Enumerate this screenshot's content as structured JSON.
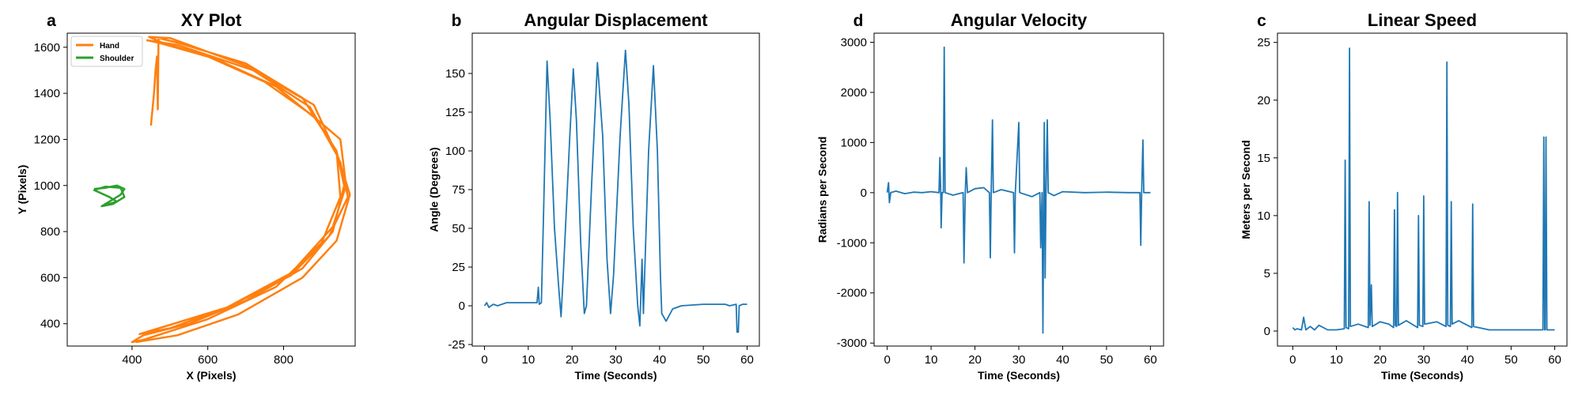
{
  "chart_data": [
    {
      "type": "line",
      "panel_label": "a",
      "title": "XY Plot",
      "xlabel": "X (Pixels)",
      "ylabel": "Y (Pixels)",
      "xlim": [
        229,
        989
      ],
      "ylim": [
        303,
        1661
      ],
      "xticks": [
        400,
        600,
        800
      ],
      "yticks": [
        400,
        600,
        800,
        1000,
        1200,
        1400,
        1600
      ],
      "legend": "upper left",
      "series": [
        {
          "name": "Hand",
          "color": "#ff7f0e",
          "x": [
            450,
            458,
            462,
            466,
            468,
            470,
            520,
            700,
            850,
            940,
            960,
            930,
            850,
            700,
            550,
            430,
            400,
            430,
            600,
            780,
            900,
            950,
            940,
            880,
            750,
            600,
            480,
            445,
            500,
            700,
            880,
            950,
            970,
            920,
            820,
            650,
            500,
            420,
            450,
            650,
            820,
            930,
            965,
            950,
            900,
            780,
            620,
            470,
            440,
            520,
            720,
            870,
            945,
            975,
            940,
            850,
            680,
            520,
            410
          ],
          "values": [
            1260,
            1400,
            1500,
            1560,
            1330,
            1640,
            1620,
            1530,
            1380,
            1150,
            1000,
            800,
            640,
            500,
            400,
            350,
            320,
            330,
            420,
            560,
            750,
            950,
            1150,
            1300,
            1450,
            1560,
            1620,
            1645,
            1640,
            1520,
            1350,
            1100,
            950,
            780,
            610,
            470,
            380,
            355,
            370,
            470,
            620,
            820,
            1000,
            1200,
            1270,
            1430,
            1550,
            1620,
            1630,
            1610,
            1500,
            1340,
            1120,
            960,
            760,
            600,
            440,
            350,
            320
          ]
        },
        {
          "name": "Shoulder",
          "color": "#2ca02c",
          "x": [
            300,
            330,
            360,
            380,
            370,
            340,
            320,
            350,
            380,
            370,
            330,
            300,
            340,
            360,
            330
          ],
          "values": [
            985,
            990,
            1000,
            985,
            960,
            930,
            910,
            920,
            950,
            990,
            995,
            980,
            950,
            930,
            915
          ]
        }
      ]
    },
    {
      "type": "line",
      "panel_label": "b",
      "title": "Angular Displacement",
      "xlabel": "Time (Seconds)",
      "ylabel": "Angle (Degrees)",
      "xlim": [
        -2.8,
        62.8
      ],
      "ylim": [
        -26,
        176
      ],
      "xticks": [
        0,
        10,
        20,
        30,
        40,
        50,
        60
      ],
      "yticks": [
        -25,
        0,
        25,
        50,
        75,
        100,
        125,
        150
      ],
      "series": [
        {
          "color": "#1f77b4",
          "x": [
            0,
            0.5,
            1,
            2,
            3,
            5,
            8,
            10,
            12,
            12.3,
            12.5,
            13,
            13.5,
            14.3,
            15,
            16,
            17,
            17.5,
            18,
            19.5,
            20.3,
            21,
            22,
            22.8,
            23.3,
            24.5,
            25.8,
            27,
            28,
            28.8,
            29.5,
            31,
            32.2,
            33,
            34,
            35,
            35.5,
            36,
            36.3,
            37.5,
            38.6,
            39.5,
            40.2,
            40.5,
            41.5,
            43,
            45,
            50,
            55,
            56,
            57.5,
            57.7,
            58,
            58.2,
            59,
            60
          ],
          "values": [
            0,
            2,
            -1,
            1,
            0,
            2,
            2,
            2,
            2,
            12,
            1,
            2,
            60,
            158,
            120,
            50,
            10,
            -7,
            20,
            110,
            153,
            120,
            40,
            -5,
            0,
            80,
            157,
            110,
            30,
            -5,
            20,
            110,
            165,
            130,
            50,
            0,
            -13,
            30,
            -5,
            100,
            155,
            100,
            20,
            -5,
            -10,
            -2,
            0,
            1,
            1,
            0,
            1,
            -17,
            -17,
            0,
            1,
            1
          ]
        }
      ]
    },
    {
      "type": "line",
      "panel_label": "d",
      "title": "Angular Velocity",
      "xlabel": "Time (Seconds)",
      "ylabel": "Radians per Second",
      "xlim": [
        -3,
        63
      ],
      "ylim": [
        -3060,
        3181
      ],
      "xticks": [
        0,
        10,
        20,
        30,
        40,
        50,
        60
      ],
      "yticks": [
        -3000,
        -2000,
        -1000,
        0,
        1000,
        2000,
        3000
      ],
      "series": [
        {
          "color": "#1f77b4",
          "x": [
            0,
            0.3,
            0.5,
            0.8,
            2,
            4,
            6,
            8,
            10,
            11.8,
            12,
            12.2,
            12.3,
            12.5,
            12.8,
            13,
            13.2,
            15,
            17.3,
            17.5,
            17.8,
            18,
            18.3,
            20,
            22,
            23.3,
            23.5,
            23.7,
            24,
            24.2,
            26,
            28.8,
            29,
            29.2,
            30,
            30.2,
            33,
            34.8,
            35,
            35.3,
            35.5,
            35.7,
            35.8,
            36,
            36.2,
            36.5,
            36.7,
            38,
            40,
            45,
            50,
            55,
            57.6,
            57.8,
            58,
            58.3,
            58.5,
            60
          ],
          "values": [
            0,
            200,
            -200,
            0,
            30,
            -20,
            10,
            0,
            20,
            0,
            700,
            0,
            -700,
            0,
            0,
            2900,
            0,
            -50,
            0,
            -1400,
            0,
            500,
            0,
            80,
            100,
            0,
            -1300,
            0,
            1450,
            0,
            60,
            0,
            -1200,
            0,
            1400,
            0,
            -80,
            0,
            -1100,
            0,
            -2800,
            0,
            1400,
            -1700,
            0,
            1450,
            0,
            -60,
            20,
            0,
            10,
            0,
            0,
            -1050,
            0,
            1050,
            0,
            0
          ]
        }
      ]
    },
    {
      "type": "line",
      "panel_label": "c",
      "title": "Linear Speed",
      "xlabel": "Time (Seconds)",
      "ylabel": "Meters per Second",
      "xlim": [
        -3.5,
        62.8
      ],
      "ylim": [
        -1.3,
        25.8
      ],
      "xticks": [
        0,
        10,
        20,
        30,
        40,
        50,
        60
      ],
      "yticks": [
        0,
        5,
        10,
        15,
        20,
        25
      ],
      "series": [
        {
          "color": "#1f77b4",
          "x": [
            0,
            0.5,
            1,
            2,
            2.5,
            3,
            4,
            5,
            6,
            8,
            10,
            11.8,
            12,
            12.2,
            12.8,
            13,
            13.2,
            15,
            17.3,
            17.5,
            17.7,
            18,
            18.2,
            20,
            22,
            23.1,
            23.3,
            23.5,
            23.8,
            24,
            24.2,
            26,
            28.6,
            28.8,
            29,
            29.8,
            30,
            30.2,
            33,
            35.1,
            35.3,
            35.5,
            36.1,
            36.3,
            36.5,
            38,
            41,
            41.2,
            41.4,
            45,
            50,
            55,
            57.3,
            57.5,
            57.7,
            57.8,
            58,
            58.2,
            60
          ],
          "values": [
            0.3,
            0.1,
            0.2,
            0.1,
            1.2,
            0.1,
            0.4,
            0.1,
            0.5,
            0.1,
            0.1,
            0.2,
            14.8,
            0.3,
            0.2,
            24.5,
            0.4,
            0.6,
            0.3,
            11.2,
            0.5,
            4,
            0.4,
            0.8,
            0.6,
            0.3,
            10.5,
            0.5,
            0.4,
            12,
            0.5,
            0.9,
            0.3,
            10,
            0.5,
            0.4,
            11.7,
            0.6,
            0.8,
            0.4,
            23.3,
            0.5,
            0.4,
            11.2,
            0.6,
            0.9,
            0.3,
            11,
            0.4,
            0.1,
            0.1,
            0.1,
            0.1,
            16.8,
            0.1,
            0.1,
            16.8,
            0.1,
            0.1
          ]
        }
      ]
    }
  ]
}
